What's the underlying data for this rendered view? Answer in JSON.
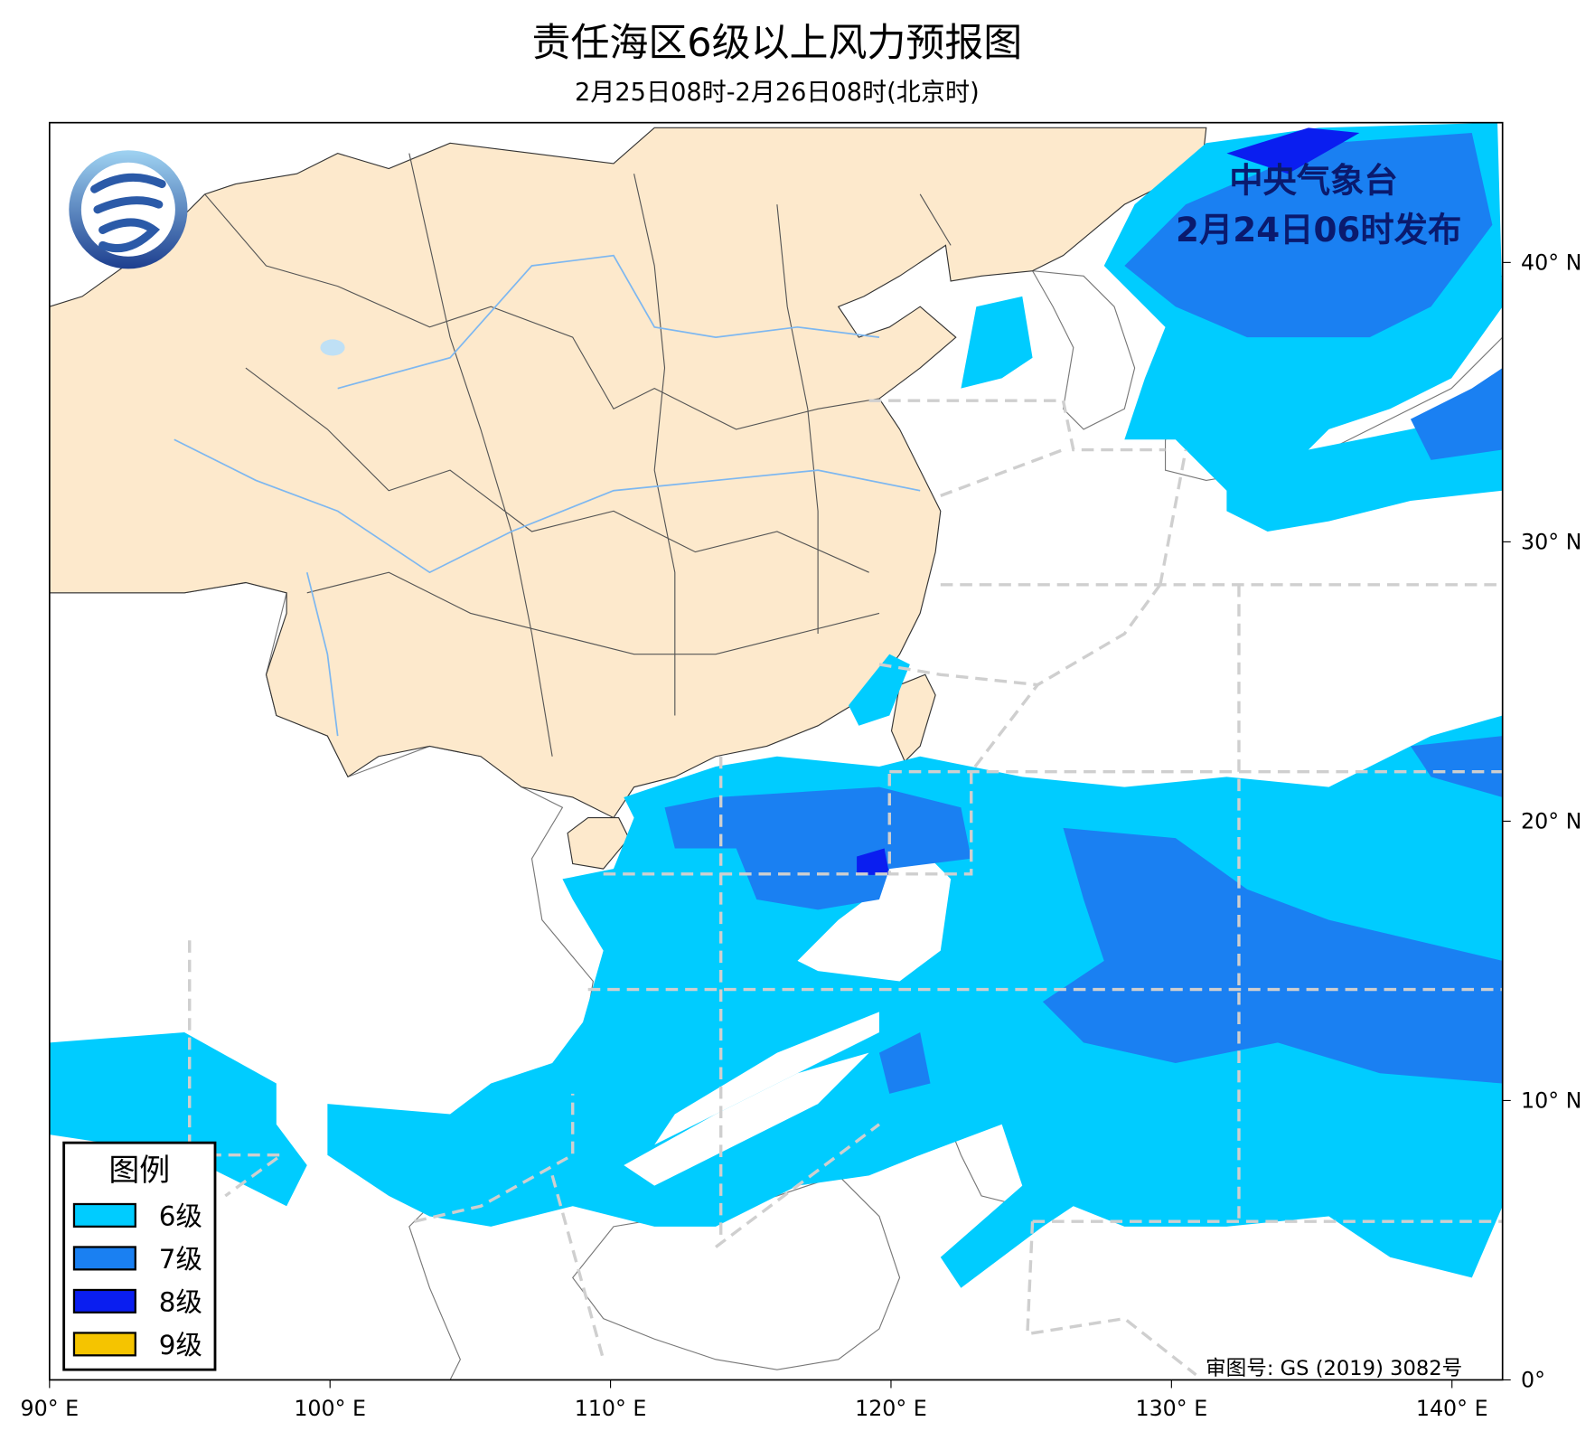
{
  "header": {
    "title": "责任海区6级以上风力预报图",
    "subtitle": "2月25日08时-2月26日08时(北京时)"
  },
  "issuer": {
    "name": "中央气象台",
    "time": "2月24日06时发布"
  },
  "legend": {
    "title": "图例",
    "items": [
      {
        "label": "6级",
        "color": "#00ccff"
      },
      {
        "label": "7级",
        "color": "#1a80f2"
      },
      {
        "label": "8级",
        "color": "#0a1ef0"
      },
      {
        "label": "9级",
        "color": "#f5c400"
      }
    ]
  },
  "axes": {
    "x_labels": [
      "90° E",
      "100° E",
      "110° E",
      "120° E",
      "130° E",
      "140° E"
    ],
    "y_labels": [
      "0°",
      "10° N",
      "20° N",
      "30° N",
      "40° N"
    ]
  },
  "approval": "审图号: GS (2019) 3082号"
}
